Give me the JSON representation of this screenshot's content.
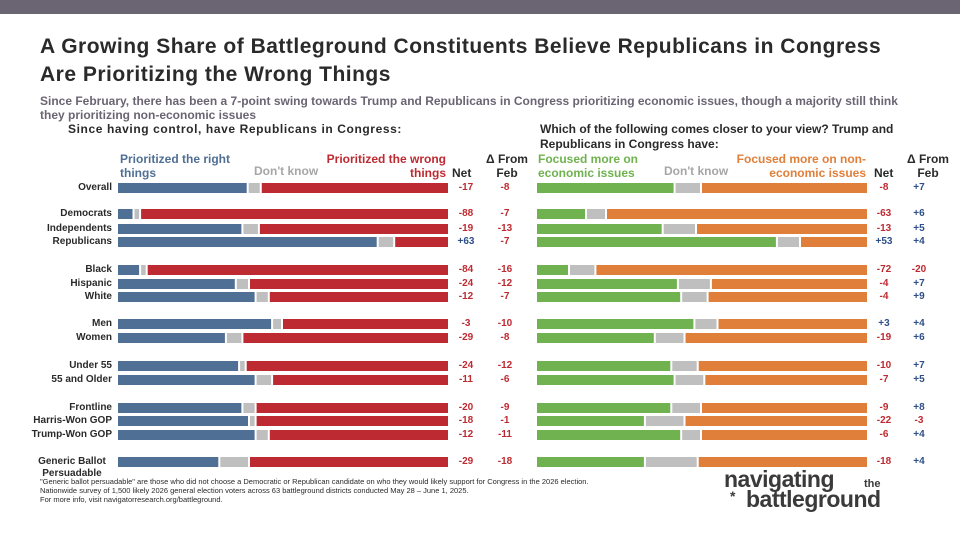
{
  "title": "A Growing Share of Battleground Constituents Believe Republicans in Congress Are Prioritizing the Wrong Things",
  "subtitle": "Since February, there has been a 7-point swing towards Trump and Republicans in Congress prioritizing economic issues, though a majority still think they prioritizing non-economic issues",
  "colors": {
    "blue": "#4f6f94",
    "red": "#be2a31",
    "green": "#6fb24f",
    "orange": "#e07f3a",
    "gray": "#bfbfbf",
    "gray_text": "#a6a6a6",
    "pos": "#2e4f8a",
    "neg": "#be2a31"
  },
  "left_section_title": "Since having control, have Republicans in Congress:",
  "right_section_title": "Which of the following comes closer to your view? Trump and Republicans in Congress have:",
  "headers": {
    "left_a": "Prioritized the right things",
    "left_dk": "Don't know",
    "left_b": "Prioritized the wrong things",
    "right_a": "Focused more on economic issues",
    "right_dk": "Don't know",
    "right_b": "Focused more on non-economic issues",
    "net": "Net",
    "delta": "Δ From Feb"
  },
  "footnote": [
    "\"Generic ballot persuadable\" are those who did not choose a Democratic or Republican candidate on who they would likely support for Congress in the 2026 election.",
    "Nationwide survey of 1,500 likely 2026 general election voters across 63 battleground districts conducted May 28 – June 1, 2025.",
    "For more info, visit navigatorresearch.org/battleground."
  ],
  "logo": {
    "line1": "navigating",
    "the": "the",
    "line2": "battleground",
    "star": "*"
  },
  "chart_data": [
    {
      "type": "bar",
      "stacked": true,
      "orientation": "horizontal",
      "title": "Since having control, have Republicans in Congress:",
      "categories": [
        "Overall",
        "Democrats",
        "Independents",
        "Republicans",
        "Black",
        "Hispanic",
        "White",
        "Men",
        "Women",
        "Under 55",
        "55 and Older",
        "Frontline",
        "Harris-Won GOP",
        "Trump-Won GOP",
        "Generic Ballot Persuadable"
      ],
      "series": [
        {
          "name": "Prioritized the right things",
          "values": [
            40,
            5,
            38,
            79,
            7,
            36,
            42,
            47,
            33,
            37,
            42,
            38,
            40,
            42,
            31
          ]
        },
        {
          "name": "Don't know",
          "values": [
            4,
            2,
            5,
            5,
            2,
            4,
            4,
            3,
            5,
            2,
            5,
            4,
            2,
            4,
            9
          ]
        },
        {
          "name": "Prioritized the wrong things",
          "values": [
            57,
            93,
            57,
            16,
            91,
            60,
            54,
            50,
            62,
            61,
            53,
            58,
            58,
            54,
            60
          ]
        }
      ],
      "net": [
        "-17",
        "-88",
        "-19",
        "+63",
        "-84",
        "-24",
        "-12",
        "-3",
        "-29",
        "-24",
        "-11",
        "-20",
        "-18",
        "-12",
        "-29"
      ],
      "delta_from_feb": [
        "-8",
        "-7",
        "-13",
        "-7",
        "-16",
        "-12",
        "-7",
        "-10",
        "-8",
        "-12",
        "-6",
        "-9",
        "-1",
        "-11",
        "-18"
      ]
    },
    {
      "type": "bar",
      "stacked": true,
      "orientation": "horizontal",
      "title": "Which of the following comes closer to your view? Trump and Republicans in Congress have:",
      "categories": [
        "Overall",
        "Democrats",
        "Independents",
        "Republicans",
        "Black",
        "Hispanic",
        "White",
        "Men",
        "Women",
        "Under 55",
        "55 and Older",
        "Frontline",
        "Harris-Won GOP",
        "Trump-Won GOP",
        "Generic Ballot Persuadable"
      ],
      "series": [
        {
          "name": "Focused more on economic issues",
          "values": [
            42,
            15,
            38,
            73,
            10,
            43,
            44,
            48,
            36,
            41,
            42,
            41,
            33,
            44,
            33
          ]
        },
        {
          "name": "Don't know",
          "values": [
            8,
            6,
            10,
            7,
            8,
            10,
            8,
            7,
            9,
            8,
            9,
            9,
            12,
            6,
            16
          ]
        },
        {
          "name": "Focused more on non-economic issues",
          "values": [
            50,
            78,
            51,
            20,
            82,
            47,
            48,
            45,
            55,
            51,
            49,
            50,
            55,
            50,
            51
          ]
        }
      ],
      "net": [
        "-8",
        "-63",
        "-13",
        "+53",
        "-72",
        "-4",
        "-4",
        "+3",
        "-19",
        "-10",
        "-7",
        "-9",
        "-22",
        "-6",
        "-18"
      ],
      "delta_from_feb": [
        "+7",
        "+6",
        "+5",
        "+4",
        "-20",
        "+7",
        "+9",
        "+4",
        "+6",
        "+7",
        "+5",
        "+8",
        "-3",
        "+4",
        "+4"
      ]
    }
  ]
}
